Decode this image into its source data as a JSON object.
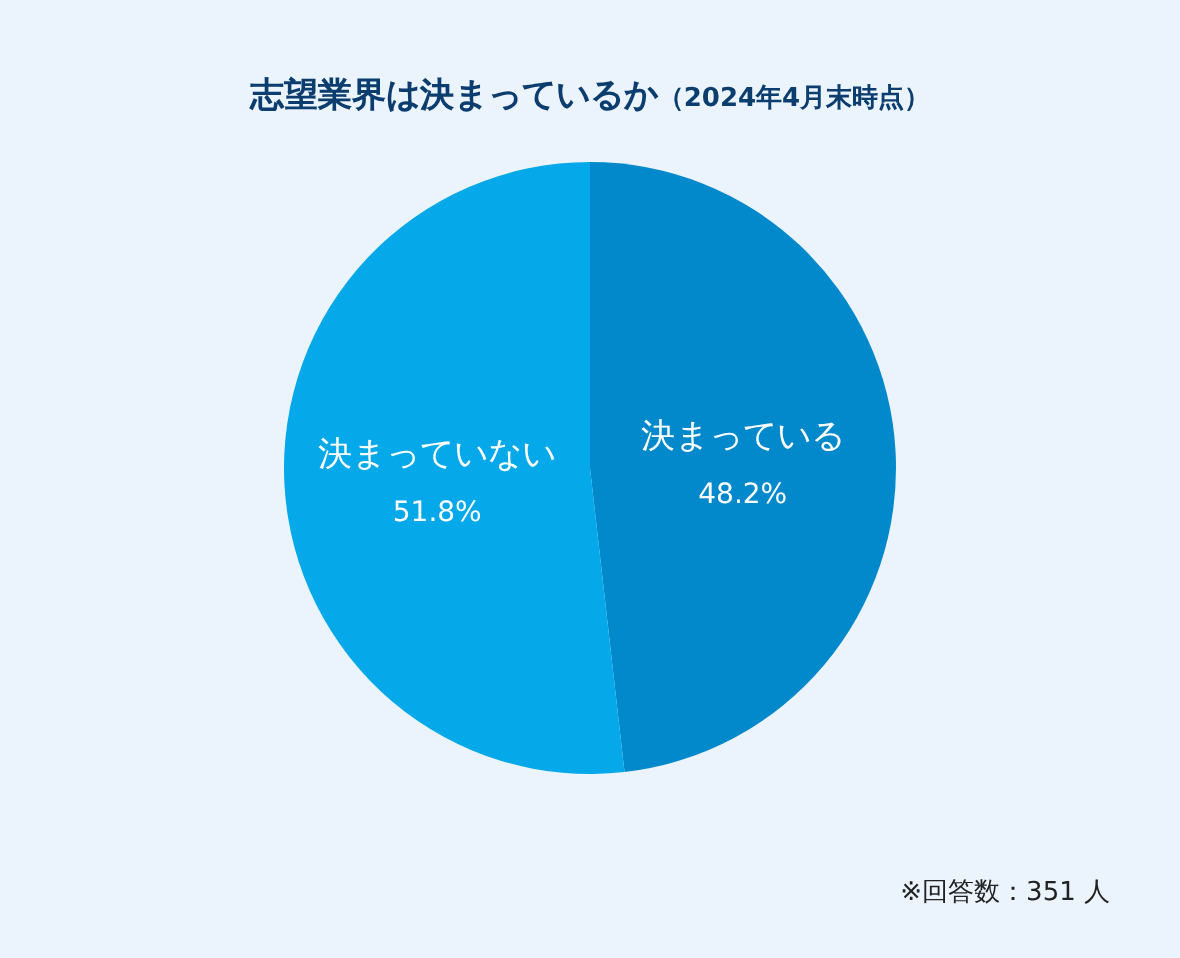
{
  "chart_data": {
    "type": "pie",
    "title": "志望業界は決まっているか",
    "subtitle": "（2024年4月末時点）",
    "categories": [
      "決まっている",
      "決まっていない"
    ],
    "values": [
      48.2,
      51.8
    ],
    "value_labels": [
      "48.2%",
      "51.8%"
    ],
    "colors": [
      "#0289cb",
      "#05a9e9"
    ],
    "legend": false,
    "annotations": [
      "※回答数：351 人"
    ]
  }
}
